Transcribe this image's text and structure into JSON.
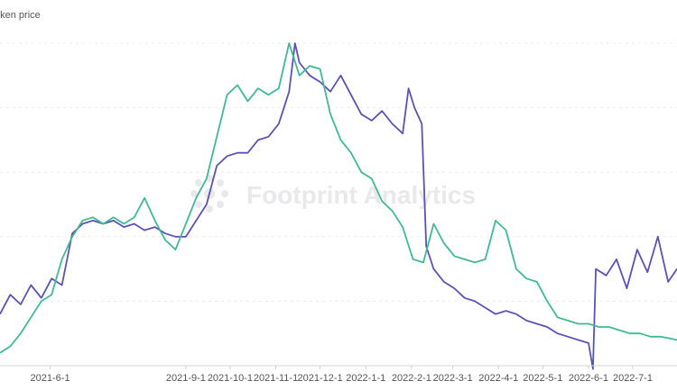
{
  "watermark": {
    "brand_text": "Footprint Analytics",
    "icon": "footprint-logo-icon"
  },
  "chart_data": {
    "type": "line",
    "title": "oken price",
    "xlabel": "",
    "ylabel": "",
    "grid": true,
    "legend": "none",
    "x_ticks": [
      "2021-6-1",
      "2021-9-1",
      "2021-10-1",
      "2021-11-1",
      "2021-12-1",
      "2022-1-1",
      "2022-2-1",
      "2022-3-1",
      "2022-4-1",
      "2022-5-1",
      "2022-6-1",
      "2022-7-1"
    ],
    "x_range": [
      "2021-04-28",
      "2022-07-31"
    ],
    "ylim": [
      0,
      100
    ],
    "series": [
      {
        "color": "#5b52b6",
        "points": [
          [
            "2021-04-28",
            16
          ],
          [
            "2021-05-05",
            22
          ],
          [
            "2021-05-12",
            19
          ],
          [
            "2021-05-19",
            25
          ],
          [
            "2021-05-26",
            21
          ],
          [
            "2021-06-02",
            27
          ],
          [
            "2021-06-09",
            25
          ],
          [
            "2021-06-16",
            41
          ],
          [
            "2021-06-23",
            44
          ],
          [
            "2021-06-30",
            45
          ],
          [
            "2021-07-07",
            44
          ],
          [
            "2021-07-14",
            45
          ],
          [
            "2021-07-21",
            43
          ],
          [
            "2021-07-28",
            44
          ],
          [
            "2021-08-04",
            42
          ],
          [
            "2021-08-11",
            43
          ],
          [
            "2021-08-18",
            41
          ],
          [
            "2021-08-25",
            40
          ],
          [
            "2021-09-01",
            40
          ],
          [
            "2021-09-08",
            45
          ],
          [
            "2021-09-15",
            50
          ],
          [
            "2021-09-22",
            62
          ],
          [
            "2021-09-29",
            65
          ],
          [
            "2021-10-06",
            66
          ],
          [
            "2021-10-13",
            66
          ],
          [
            "2021-10-20",
            70
          ],
          [
            "2021-10-27",
            71
          ],
          [
            "2021-11-03",
            75
          ],
          [
            "2021-11-10",
            85
          ],
          [
            "2021-11-14",
            100
          ],
          [
            "2021-11-17",
            94
          ],
          [
            "2021-11-24",
            90
          ],
          [
            "2021-12-01",
            88
          ],
          [
            "2021-12-08",
            85
          ],
          [
            "2021-12-15",
            90
          ],
          [
            "2021-12-22",
            84
          ],
          [
            "2021-12-29",
            78
          ],
          [
            "2022-01-05",
            76
          ],
          [
            "2022-01-12",
            79
          ],
          [
            "2022-01-19",
            75
          ],
          [
            "2022-01-26",
            72
          ],
          [
            "2022-01-30",
            86
          ],
          [
            "2022-02-03",
            80
          ],
          [
            "2022-02-08",
            75
          ],
          [
            "2022-02-11",
            37
          ],
          [
            "2022-02-16",
            30
          ],
          [
            "2022-02-23",
            26
          ],
          [
            "2022-03-02",
            24
          ],
          [
            "2022-03-09",
            21
          ],
          [
            "2022-03-16",
            20
          ],
          [
            "2022-03-23",
            18
          ],
          [
            "2022-03-30",
            16
          ],
          [
            "2022-04-06",
            17
          ],
          [
            "2022-04-13",
            16
          ],
          [
            "2022-04-20",
            14
          ],
          [
            "2022-04-27",
            13
          ],
          [
            "2022-05-04",
            12
          ],
          [
            "2022-05-11",
            10
          ],
          [
            "2022-05-18",
            9
          ],
          [
            "2022-05-25",
            8
          ],
          [
            "2022-06-01",
            7
          ],
          [
            "2022-06-04",
            -1
          ],
          [
            "2022-06-06",
            30
          ],
          [
            "2022-06-13",
            28
          ],
          [
            "2022-06-20",
            33
          ],
          [
            "2022-06-27",
            24
          ],
          [
            "2022-07-04",
            36
          ],
          [
            "2022-07-11",
            29
          ],
          [
            "2022-07-18",
            40
          ],
          [
            "2022-07-25",
            26
          ],
          [
            "2022-07-31",
            30
          ]
        ]
      },
      {
        "color": "#3fba95",
        "points": [
          [
            "2021-04-28",
            4
          ],
          [
            "2021-05-05",
            6
          ],
          [
            "2021-05-12",
            10
          ],
          [
            "2021-05-19",
            15
          ],
          [
            "2021-05-26",
            20
          ],
          [
            "2021-06-02",
            22
          ],
          [
            "2021-06-09",
            33
          ],
          [
            "2021-06-16",
            40
          ],
          [
            "2021-06-23",
            45
          ],
          [
            "2021-06-30",
            46
          ],
          [
            "2021-07-07",
            44
          ],
          [
            "2021-07-14",
            46
          ],
          [
            "2021-07-21",
            44
          ],
          [
            "2021-07-28",
            46
          ],
          [
            "2021-08-04",
            52
          ],
          [
            "2021-08-11",
            45
          ],
          [
            "2021-08-18",
            39
          ],
          [
            "2021-08-25",
            36
          ],
          [
            "2021-09-01",
            44
          ],
          [
            "2021-09-08",
            52
          ],
          [
            "2021-09-15",
            58
          ],
          [
            "2021-09-22",
            71
          ],
          [
            "2021-09-29",
            84
          ],
          [
            "2021-10-06",
            87
          ],
          [
            "2021-10-13",
            82
          ],
          [
            "2021-10-20",
            86
          ],
          [
            "2021-10-27",
            84
          ],
          [
            "2021-11-03",
            86
          ],
          [
            "2021-11-10",
            100
          ],
          [
            "2021-11-17",
            90
          ],
          [
            "2021-11-24",
            93
          ],
          [
            "2021-12-01",
            92
          ],
          [
            "2021-12-08",
            78
          ],
          [
            "2021-12-15",
            70
          ],
          [
            "2021-12-22",
            66
          ],
          [
            "2021-12-29",
            60
          ],
          [
            "2022-01-05",
            58
          ],
          [
            "2022-01-12",
            51
          ],
          [
            "2022-01-19",
            48
          ],
          [
            "2022-01-26",
            43
          ],
          [
            "2022-02-02",
            33
          ],
          [
            "2022-02-09",
            32
          ],
          [
            "2022-02-16",
            44
          ],
          [
            "2022-02-23",
            38
          ],
          [
            "2022-03-02",
            34
          ],
          [
            "2022-03-09",
            33
          ],
          [
            "2022-03-16",
            32
          ],
          [
            "2022-03-23",
            33
          ],
          [
            "2022-03-30",
            45
          ],
          [
            "2022-04-06",
            42
          ],
          [
            "2022-04-13",
            30
          ],
          [
            "2022-04-20",
            27
          ],
          [
            "2022-04-27",
            26
          ],
          [
            "2022-05-04",
            20
          ],
          [
            "2022-05-11",
            15
          ],
          [
            "2022-05-18",
            14
          ],
          [
            "2022-05-25",
            13
          ],
          [
            "2022-06-01",
            13
          ],
          [
            "2022-06-08",
            12
          ],
          [
            "2022-06-15",
            12
          ],
          [
            "2022-06-22",
            11
          ],
          [
            "2022-06-29",
            10
          ],
          [
            "2022-07-06",
            10
          ],
          [
            "2022-07-13",
            9
          ],
          [
            "2022-07-20",
            9
          ],
          [
            "2022-07-31",
            8
          ]
        ]
      }
    ]
  }
}
